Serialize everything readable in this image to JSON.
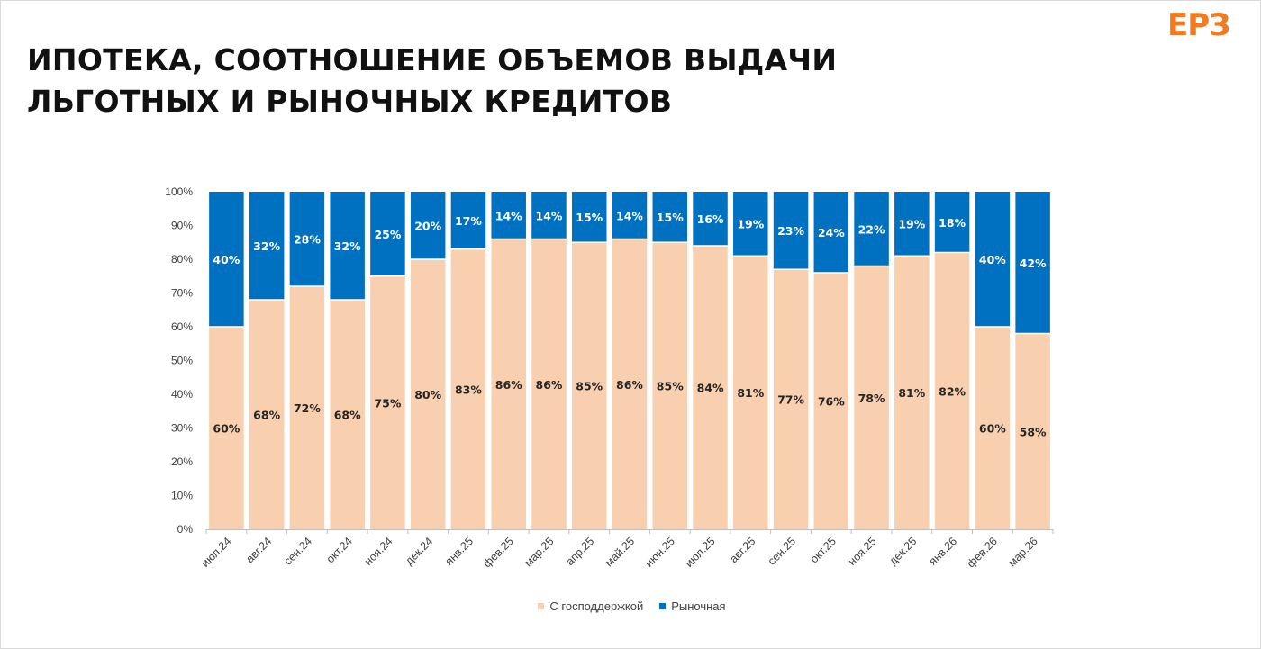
{
  "header": {
    "title_line1": "ИПОТЕКА, СООТНОШЕНИЕ ОБЪЕМОВ ВЫДАЧИ",
    "title_line2": "ЛЬГОТНЫХ И РЫНОЧНЫХ КРЕДИТОВ",
    "logo_text": "ЕРЗ"
  },
  "colors": {
    "subsidized": "#f8cfaf",
    "market": "#0070c0",
    "logo": "#f47a20"
  },
  "chart_data": {
    "type": "bar",
    "stacked": true,
    "categories": [
      "июл.24",
      "авг.24",
      "сен.24",
      "окт.24",
      "ноя.24",
      "дек.24",
      "янв.25",
      "фев.25",
      "мар.25",
      "апр.25",
      "май.25",
      "июн.25",
      "июл.25",
      "авг.25",
      "сен.25",
      "окт.25",
      "ноя.25",
      "дек.25",
      "янв.26",
      "фев.26",
      "мар.26"
    ],
    "series": [
      {
        "name": "С господдержкой",
        "values": [
          60,
          68,
          72,
          68,
          75,
          80,
          83,
          86,
          86,
          85,
          86,
          85,
          84,
          81,
          77,
          76,
          78,
          81,
          82,
          60,
          58
        ]
      },
      {
        "name": "Рыночная",
        "values": [
          40,
          32,
          28,
          32,
          25,
          20,
          17,
          14,
          14,
          15,
          14,
          15,
          16,
          19,
          23,
          24,
          22,
          19,
          18,
          40,
          42
        ]
      }
    ],
    "value_labels": {
      "subsidized": [
        "60%",
        "68%",
        "72%",
        "68%",
        "75%",
        "80%",
        "83%",
        "86%",
        "86%",
        "85%",
        "86%",
        "85%",
        "84%",
        "81%",
        "77%",
        "76%",
        "78%",
        "81%",
        "82%",
        "60%",
        "58%"
      ],
      "market": [
        "40%",
        "32%",
        "28%",
        "32%",
        "25%",
        "20%",
        "17%",
        "14%",
        "14%",
        "15%",
        "14%",
        "15%",
        "16%",
        "19%",
        "23%",
        "24%",
        "22%",
        "19%",
        "18%",
        "40%",
        "42%"
      ]
    },
    "y_ticks": [
      "0%",
      "10%",
      "20%",
      "30%",
      "40%",
      "50%",
      "60%",
      "70%",
      "80%",
      "90%",
      "100%"
    ],
    "ylim": [
      0,
      100
    ],
    "legend_position": "bottom"
  }
}
